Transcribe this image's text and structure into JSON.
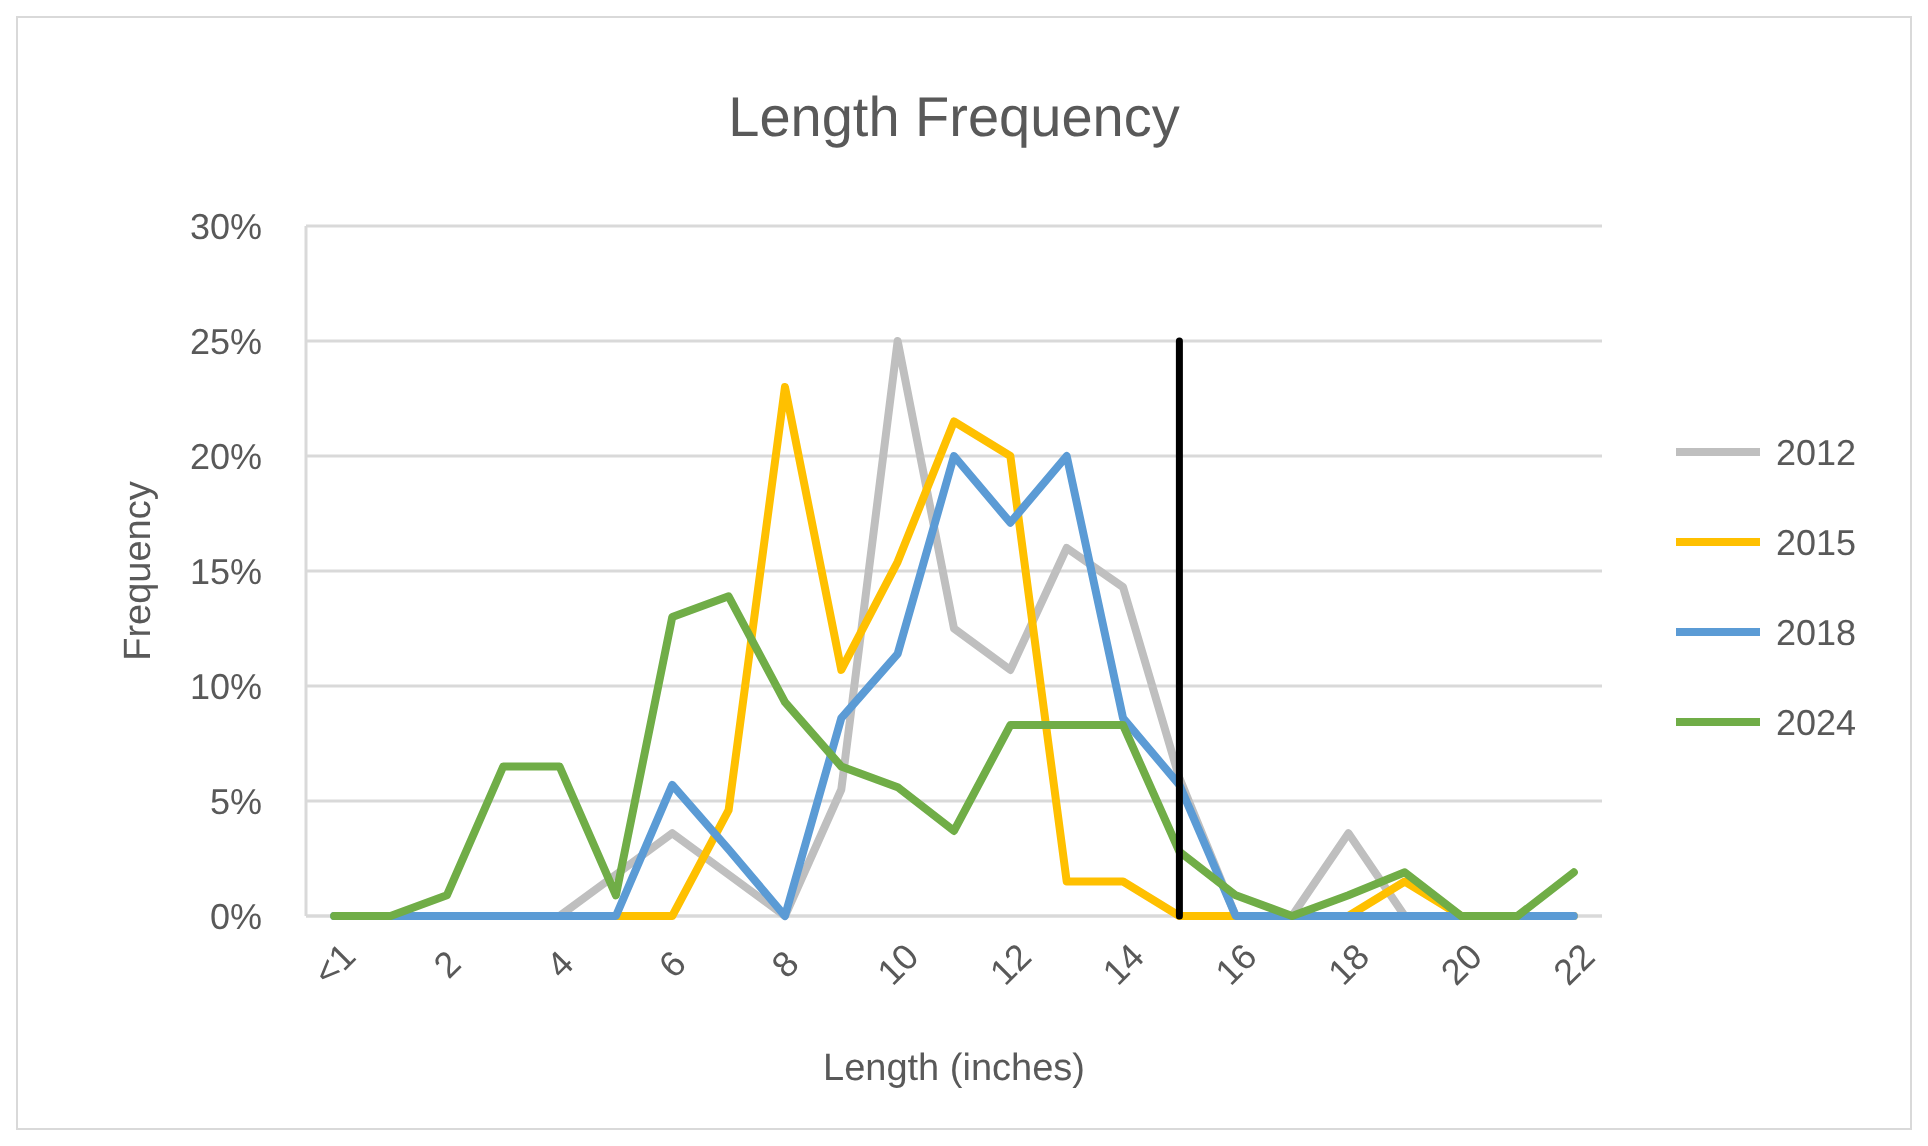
{
  "chart_data": {
    "type": "line",
    "title": "Length Frequency",
    "xlabel": "Length (inches)",
    "ylabel": "Frequency",
    "x": [
      0,
      1,
      2,
      3,
      4,
      5,
      6,
      7,
      8,
      9,
      10,
      11,
      12,
      13,
      14,
      15,
      16,
      17,
      18,
      19,
      20,
      21,
      22
    ],
    "xlim": [
      -0.5,
      22.5
    ],
    "xticks": [
      {
        "value": 0,
        "label": "<1"
      },
      2,
      4,
      6,
      8,
      10,
      12,
      14,
      16,
      18,
      20,
      22
    ],
    "ylim": [
      0,
      30
    ],
    "yticks": [
      {
        "value": 0,
        "label": "0%"
      },
      {
        "value": 5,
        "label": "5%"
      },
      {
        "value": 10,
        "label": "10%"
      },
      {
        "value": 15,
        "label": "15%"
      },
      {
        "value": 20,
        "label": "20%"
      },
      {
        "value": 25,
        "label": "25%"
      },
      {
        "value": 30,
        "label": "30%"
      }
    ],
    "grid": "y",
    "legend": "right",
    "marker": "none",
    "series": [
      {
        "name": "2012",
        "color": "#bfbfbf",
        "values": [
          0,
          0,
          0,
          0,
          0,
          1.8,
          3.6,
          1.8,
          0,
          5.5,
          25,
          12.5,
          10.7,
          16,
          14.3,
          6,
          0,
          0,
          3.6,
          0,
          0,
          0,
          0
        ]
      },
      {
        "name": "2015",
        "color": "#ffc000",
        "values": [
          null,
          null,
          null,
          null,
          null,
          0,
          0,
          4.6,
          23,
          10.7,
          15.4,
          21.5,
          20,
          1.5,
          1.5,
          0,
          0,
          0,
          0,
          1.5,
          0,
          0,
          0
        ]
      },
      {
        "name": "2018",
        "color": "#5b9bd5",
        "values": [
          0,
          0,
          0,
          0,
          0,
          0,
          5.7,
          2.9,
          0,
          8.6,
          11.4,
          20,
          17.1,
          20,
          8.6,
          5.7,
          0,
          0,
          0,
          0,
          0,
          0,
          0
        ]
      },
      {
        "name": "2024",
        "color": "#70ad47",
        "values": [
          0,
          0,
          0.9,
          6.5,
          6.5,
          0.9,
          13,
          13.9,
          9.3,
          6.5,
          5.6,
          3.7,
          8.3,
          8.3,
          8.3,
          2.8,
          0.9,
          0,
          0.9,
          1.9,
          0,
          0,
          1.9
        ]
      },
      {
        "type": "line",
        "color": "#000000",
        "x": [
          15,
          15
        ],
        "values": [
          0,
          25
        ]
      }
    ]
  }
}
